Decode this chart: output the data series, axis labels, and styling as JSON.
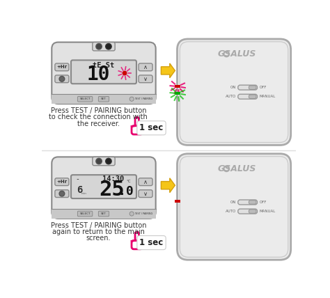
{
  "bg_color": "#ffffff",
  "thermostat_body_color": "#e2e2e2",
  "thermostat_border_color": "#888888",
  "display_bg": "#d0d0d0",
  "display_text1_top": "tE St",
  "display_num1": "10",
  "display_text2_top": "14:30",
  "display_num2": "25",
  "display_num2_dec": ".0",
  "display_sub2_min": "6",
  "display_sub2_dot": "-",
  "salus_color": "#aaaaaa",
  "receiver_body_color": "#eeeeee",
  "receiver_border_color": "#999999",
  "receiver_inner_color": "#dddddd",
  "red_led": "#cc0000",
  "green_led": "#00aa00",
  "arrow_color": "#f5c518",
  "arrow_border": "#d4a010",
  "text1_line1": "Press TEST / PAIRING button",
  "text1_line2": "to check the connection with",
  "text1_line3": "the receiver.",
  "text2_line1": "Press TEST / PAIRING button",
  "text2_line2": "again to return to the main",
  "text2_line3": "screen.",
  "sec_text": "1 sec",
  "pink_color": "#e8006e",
  "button_gray": "#cccccc",
  "bottom_strip_color": "#c8c8c8",
  "top_area_color": "#d8d8d8"
}
